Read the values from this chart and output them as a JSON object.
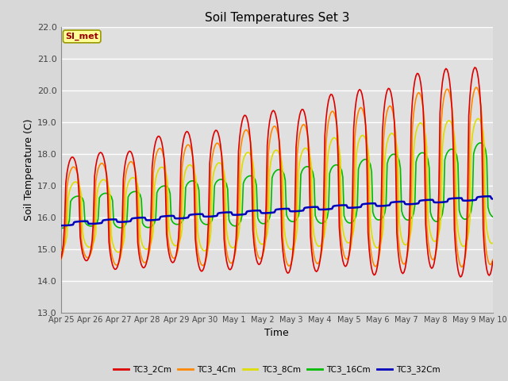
{
  "title": "Soil Temperatures Set 3",
  "xlabel": "Time",
  "ylabel": "Soil Temperature (C)",
  "ylim": [
    13.0,
    22.0
  ],
  "yticks": [
    13.0,
    14.0,
    15.0,
    16.0,
    17.0,
    18.0,
    19.0,
    20.0,
    21.0,
    22.0
  ],
  "xtick_labels": [
    "Apr 25",
    "Apr 26",
    "Apr 27",
    "Apr 28",
    "Apr 29",
    "Apr 30",
    "May 1",
    "May 2",
    "May 3",
    "May 4",
    "May 5",
    "May 6",
    "May 7",
    "May 8",
    "May 9",
    "May 10"
  ],
  "bg_color": "#d8d8d8",
  "plot_bg_color": "#e0e0e0",
  "grid_color": "#ffffff",
  "annotation_text": "SI_met",
  "annotation_bg": "#ffff99",
  "annotation_fg": "#990000",
  "series": {
    "TC3_2Cm": {
      "color": "#dd0000",
      "lw": 1.2
    },
    "TC3_4Cm": {
      "color": "#ff8800",
      "lw": 1.2
    },
    "TC3_8Cm": {
      "color": "#dddd00",
      "lw": 1.2
    },
    "TC3_16Cm": {
      "color": "#00bb00",
      "lw": 1.2
    },
    "TC3_32Cm": {
      "color": "#0000bb",
      "lw": 1.8
    }
  }
}
